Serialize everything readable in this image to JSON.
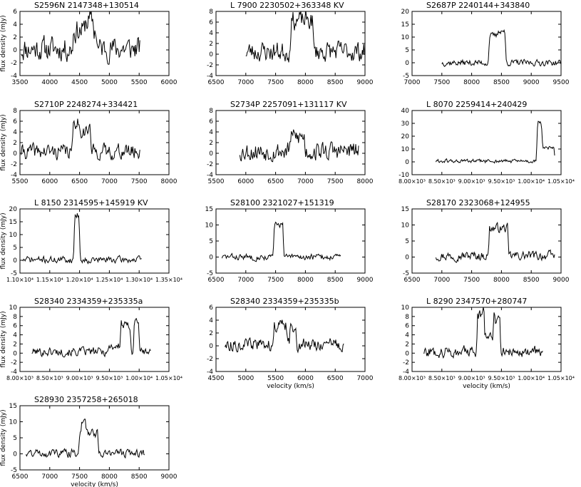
{
  "figure": {
    "background": "#ffffff",
    "line_color": "#000000",
    "x_unit_label": "velocity (km/s)",
    "y_unit_label": "flux density (mJy)"
  },
  "chart_data": [
    {
      "type": "line",
      "title": "S2596N   2147348+130514",
      "xlim": [
        3500,
        6000
      ],
      "ylim": [
        -4,
        6
      ],
      "xticks": [
        3500,
        4000,
        4500,
        5000,
        5500,
        6000
      ],
      "yticks": [
        -4,
        -2,
        0,
        2,
        4,
        6
      ],
      "xlabel": "",
      "ylabel": "flux density (mJy)",
      "profile": {
        "start": 3520,
        "end": 5520,
        "step": 12,
        "base": 0.2,
        "noise": 1.6,
        "seed": 11,
        "features": [
          [
            4400,
            4780,
            2.8
          ],
          [
            4600,
            4720,
            1.5
          ]
        ]
      }
    },
    {
      "type": "line",
      "title": "L 7900   2230502+363348  KV",
      "xlim": [
        6500,
        9000
      ],
      "ylim": [
        -4,
        8
      ],
      "xticks": [
        6500,
        7000,
        7500,
        8000,
        8500,
        9000
      ],
      "yticks": [
        -4,
        -2,
        0,
        2,
        4,
        6,
        8
      ],
      "xlabel": "",
      "ylabel": "",
      "profile": {
        "start": 7000,
        "end": 9000,
        "step": 12,
        "base": 0.5,
        "noise": 1.6,
        "seed": 23,
        "features": [
          [
            7760,
            8120,
            5.8
          ]
        ]
      }
    },
    {
      "type": "line",
      "title": "S2687P   2240144+343840",
      "xlim": [
        7000,
        9500
      ],
      "ylim": [
        -5,
        20
      ],
      "xticks": [
        7000,
        7500,
        8000,
        8500,
        9000,
        9500
      ],
      "yticks": [
        -5,
        0,
        5,
        10,
        15,
        20
      ],
      "xlabel": "",
      "ylabel": "",
      "profile": {
        "start": 7500,
        "end": 9500,
        "step": 12,
        "base": 0.0,
        "noise": 1.0,
        "seed": 37,
        "features": [
          [
            8300,
            8560,
            10.5
          ],
          [
            8450,
            8540,
            2.0
          ]
        ]
      }
    },
    {
      "type": "line",
      "title": "S2710P   2248274+334421",
      "xlim": [
        5500,
        8000
      ],
      "ylim": [
        -4,
        8
      ],
      "xticks": [
        5500,
        6000,
        6500,
        7000,
        7500,
        8000
      ],
      "yticks": [
        -4,
        -2,
        0,
        2,
        4,
        6,
        8
      ],
      "xlabel": "",
      "ylabel": "flux density (mJy)",
      "profile": {
        "start": 5520,
        "end": 7520,
        "step": 12,
        "base": 0.3,
        "noise": 1.2,
        "seed": 41,
        "features": [
          [
            6400,
            6680,
            4.0
          ],
          [
            6400,
            6480,
            1.8
          ]
        ]
      }
    },
    {
      "type": "line",
      "title": "S2734P   2257091+131117  KV",
      "xlim": [
        5500,
        8000
      ],
      "ylim": [
        -4,
        8
      ],
      "xticks": [
        5500,
        6000,
        6500,
        7000,
        7500,
        8000
      ],
      "yticks": [
        -4,
        -2,
        0,
        2,
        4,
        6,
        8
      ],
      "xlabel": "",
      "ylabel": "",
      "profile": {
        "start": 5900,
        "end": 7900,
        "step": 12,
        "base": 0.4,
        "noise": 1.5,
        "seed": 53,
        "features": [
          [
            6750,
            6980,
            2.6
          ]
        ]
      }
    },
    {
      "type": "line",
      "title": "L 8070   2259414+240429",
      "xlim": [
        8000,
        10500
      ],
      "ylim": [
        -10,
        40
      ],
      "xticks": [
        8000,
        8500,
        9000,
        9500,
        10000,
        10500
      ],
      "xticklabels": [
        "8.00×10³",
        "8.50×10³",
        "9.00×10³",
        "9.50×10³",
        "1.00×10⁴",
        "1.05×10⁴"
      ],
      "yticks": [
        -10,
        0,
        10,
        20,
        30,
        40
      ],
      "xlabel": "",
      "ylabel": "",
      "profile": {
        "start": 8400,
        "end": 10400,
        "step": 12,
        "base": 0.5,
        "noise": 1.3,
        "seed": 61,
        "features": [
          [
            10100,
            10380,
            10.0
          ],
          [
            10110,
            10170,
            20.0
          ]
        ]
      }
    },
    {
      "type": "line",
      "title": "L 8150   2314595+145919  KV",
      "xlim": [
        11000,
        13500
      ],
      "ylim": [
        -5,
        20
      ],
      "xticks": [
        11000,
        11500,
        12000,
        12500,
        13000,
        13500
      ],
      "xticklabels": [
        "1.10×10⁴",
        "1.15×10⁴",
        "1.20×10⁴",
        "1.25×10⁴",
        "1.30×10⁴",
        "1.35×10⁴"
      ],
      "yticks": [
        -5,
        0,
        5,
        10,
        15,
        20
      ],
      "xlabel": "",
      "ylabel": "flux density (mJy)",
      "profile": {
        "start": 11050,
        "end": 13050,
        "step": 12,
        "base": 0.2,
        "noise": 1.1,
        "seed": 71,
        "features": [
          [
            11920,
            11990,
            17.5
          ]
        ]
      }
    },
    {
      "type": "line",
      "title": "S28100   2321027+151319",
      "xlim": [
        6500,
        9000
      ],
      "ylim": [
        -5,
        15
      ],
      "xticks": [
        6500,
        7000,
        7500,
        8000,
        8500,
        9000
      ],
      "yticks": [
        -5,
        0,
        5,
        10,
        15
      ],
      "xlabel": "",
      "ylabel": "",
      "profile": {
        "start": 6600,
        "end": 8600,
        "step": 12,
        "base": 0.0,
        "noise": 0.8,
        "seed": 83,
        "features": [
          [
            7480,
            7620,
            10.2
          ]
        ]
      }
    },
    {
      "type": "line",
      "title": "S28170   2323068+124955",
      "xlim": [
        6500,
        9000
      ],
      "ylim": [
        -5,
        15
      ],
      "xticks": [
        6500,
        7000,
        7500,
        8000,
        8500,
        9000
      ],
      "yticks": [
        -5,
        0,
        5,
        10,
        15
      ],
      "xlabel": "",
      "ylabel": "",
      "profile": {
        "start": 6900,
        "end": 8900,
        "step": 12,
        "base": 0.4,
        "noise": 1.2,
        "seed": 97,
        "features": [
          [
            7800,
            8100,
            8.6
          ]
        ]
      }
    },
    {
      "type": "line",
      "title": "S28340   2334359+235335a",
      "xlim": [
        8000,
        10500
      ],
      "ylim": [
        -4,
        10
      ],
      "xticks": [
        8000,
        8500,
        9000,
        9500,
        10000,
        10500
      ],
      "xticklabels": [
        "8.00×10³",
        "8.50×10³",
        "9.00×10³",
        "9.50×10³",
        "1.00×10⁴",
        "1.05×10⁴"
      ],
      "yticks": [
        -4,
        -2,
        0,
        2,
        4,
        6,
        8,
        10
      ],
      "xlabel": "",
      "ylabel": "flux density (mJy)",
      "profile": {
        "start": 8200,
        "end": 10200,
        "step": 12,
        "base": 0.3,
        "noise": 0.8,
        "seed": 101,
        "features": [
          [
            9700,
            9850,
            5.6
          ],
          [
            9920,
            9990,
            6.8
          ],
          [
            9500,
            9700,
            1.2
          ]
        ]
      }
    },
    {
      "type": "line",
      "title": "S28340   2334359+235335b",
      "xlim": [
        4500,
        7000
      ],
      "ylim": [
        -4,
        6
      ],
      "xticks": [
        4500,
        5000,
        5500,
        6000,
        6500,
        7000
      ],
      "yticks": [
        -4,
        -2,
        0,
        2,
        4,
        6
      ],
      "xlabel": "velocity (km/s)",
      "ylabel": "",
      "profile": {
        "start": 4650,
        "end": 6650,
        "step": 12,
        "base": 0.2,
        "noise": 0.8,
        "seed": 113,
        "features": [
          [
            5480,
            5680,
            2.9
          ],
          [
            5750,
            5840,
            2.8
          ]
        ]
      }
    },
    {
      "type": "line",
      "title": "L 8290   2347570+280747",
      "xlim": [
        8000,
        10500
      ],
      "ylim": [
        -4,
        10
      ],
      "xticks": [
        8000,
        8500,
        9000,
        9500,
        10000,
        10500
      ],
      "xticklabels": [
        "8.00×10³",
        "8.50×10³",
        "9.00×10³",
        "9.50×10³",
        "1.00×10⁴",
        "1.05×10⁴"
      ],
      "yticks": [
        -4,
        -2,
        0,
        2,
        4,
        6,
        8,
        10
      ],
      "xlabel": "velocity (km/s)",
      "ylabel": "",
      "profile": {
        "start": 8200,
        "end": 10200,
        "step": 12,
        "base": 0.3,
        "noise": 1.0,
        "seed": 127,
        "features": [
          [
            9100,
            9200,
            8.0
          ],
          [
            9200,
            9380,
            3.8
          ],
          [
            9380,
            9470,
            6.8
          ]
        ]
      }
    },
    {
      "type": "line",
      "title": "S28930   2357258+265018",
      "xlim": [
        6500,
        9000
      ],
      "ylim": [
        -5,
        15
      ],
      "xticks": [
        6500,
        7000,
        7500,
        8000,
        8500,
        9000
      ],
      "yticks": [
        -5,
        0,
        5,
        10,
        15
      ],
      "xlabel": "velocity (km/s)",
      "ylabel": "flux density (mJy)",
      "profile": {
        "start": 6600,
        "end": 8600,
        "step": 12,
        "base": 0.3,
        "noise": 1.1,
        "seed": 131,
        "features": [
          [
            7500,
            7800,
            6.2
          ],
          [
            7540,
            7600,
            3.0
          ]
        ]
      }
    }
  ]
}
